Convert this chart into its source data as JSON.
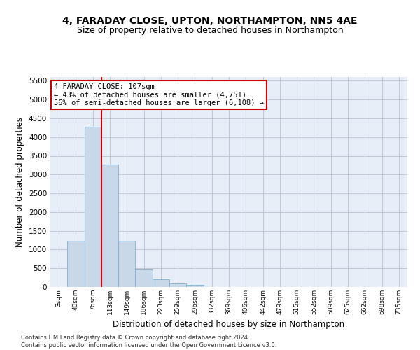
{
  "title1": "4, FARADAY CLOSE, UPTON, NORTHAMPTON, NN5 4AE",
  "title2": "Size of property relative to detached houses in Northampton",
  "xlabel": "Distribution of detached houses by size in Northampton",
  "ylabel": "Number of detached properties",
  "footnote": "Contains HM Land Registry data © Crown copyright and database right 2024.\nContains public sector information licensed under the Open Government Licence v3.0.",
  "categories": [
    "3sqm",
    "40sqm",
    "76sqm",
    "113sqm",
    "149sqm",
    "186sqm",
    "223sqm",
    "259sqm",
    "296sqm",
    "332sqm",
    "369sqm",
    "406sqm",
    "442sqm",
    "479sqm",
    "515sqm",
    "552sqm",
    "589sqm",
    "625sqm",
    "662sqm",
    "698sqm",
    "735sqm"
  ],
  "values": [
    0,
    1230,
    4280,
    3270,
    1240,
    460,
    200,
    90,
    60,
    0,
    0,
    0,
    0,
    0,
    0,
    0,
    0,
    0,
    0,
    0,
    0
  ],
  "bar_color": "#c8d8e8",
  "bar_edge_color": "#7fafd0",
  "property_line_index": 2.5,
  "property_line_color": "#cc0000",
  "annotation_line1": "4 FARADAY CLOSE: 107sqm",
  "annotation_line2": "← 43% of detached houses are smaller (4,751)",
  "annotation_line3": "56% of semi-detached houses are larger (6,108) →",
  "annotation_box_color": "white",
  "annotation_box_edge": "#cc0000",
  "ylim": [
    0,
    5600
  ],
  "yticks": [
    0,
    500,
    1000,
    1500,
    2000,
    2500,
    3000,
    3500,
    4000,
    4500,
    5000,
    5500
  ],
  "grid_color": "#c0c8d8",
  "background_color": "#e8eef8",
  "title1_fontsize": 10,
  "title2_fontsize": 9,
  "xlabel_fontsize": 8.5,
  "ylabel_fontsize": 8.5,
  "footnote_fontsize": 6.0,
  "annotation_fontsize": 7.5
}
